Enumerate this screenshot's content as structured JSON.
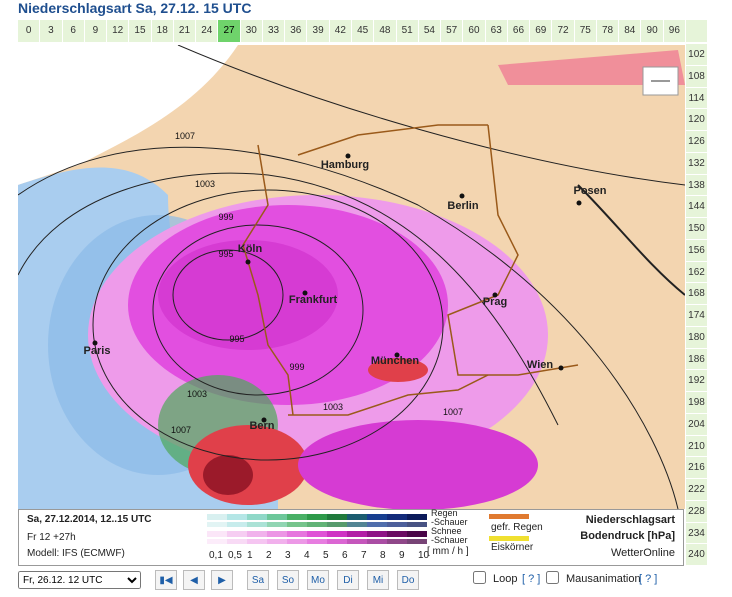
{
  "header": {
    "title": "Niederschlagsart Sa, 27.12. 15 UTC"
  },
  "time_tabs": {
    "top": [
      "0",
      "3",
      "6",
      "9",
      "12",
      "15",
      "18",
      "21",
      "24",
      "27",
      "30",
      "33",
      "36",
      "39",
      "42",
      "45",
      "48",
      "51",
      "54",
      "57",
      "60",
      "63",
      "66",
      "69",
      "72",
      "75",
      "78",
      "84",
      "90",
      "96"
    ],
    "right": [
      "102",
      "108",
      "114",
      "120",
      "126",
      "132",
      "138",
      "144",
      "150",
      "156",
      "162",
      "168",
      "174",
      "180",
      "186",
      "192",
      "198",
      "204",
      "210",
      "216",
      "222",
      "228",
      "234",
      "240"
    ]
  },
  "map": {
    "cities": [
      "Hamburg",
      "Berlin",
      "Posen",
      "Köln",
      "Frankfurt",
      "Prag",
      "Paris",
      "München",
      "Wien",
      "Bern"
    ],
    "isobar_labels": [
      "1007",
      "1003",
      "999",
      "995",
      "995",
      "999",
      "1003",
      "1007",
      "1003",
      "1007"
    ]
  },
  "legend": {
    "date": "Sa, 27.12.2014, 12..15 UTC",
    "run": "Fr 12 +27h",
    "model": "Modell: IFS (ECMWF)",
    "scale": [
      "0,1",
      "0,5",
      "1",
      "2",
      "3",
      "4",
      "5",
      "6",
      "7",
      "8",
      "9",
      "10"
    ],
    "unit": "[ mm / h ]",
    "types": [
      "Regen",
      "-Schauer",
      "Schnee",
      "-Schauer"
    ],
    "other": [
      "gefr. Regen",
      "Eiskörner"
    ],
    "product": [
      "Niederschlagsart",
      "Bodendruck [hPa]"
    ],
    "brand": "WetterOnline"
  },
  "controls": {
    "run_select": "Fr, 26.12. 12 UTC",
    "days": [
      "Sa",
      "So",
      "Mo",
      "Di",
      "Mi",
      "Do"
    ],
    "loop": "Loop",
    "loop_help": "[ ? ]",
    "mouse": "Mausanimation",
    "mouse_help": "[ ? ]"
  }
}
